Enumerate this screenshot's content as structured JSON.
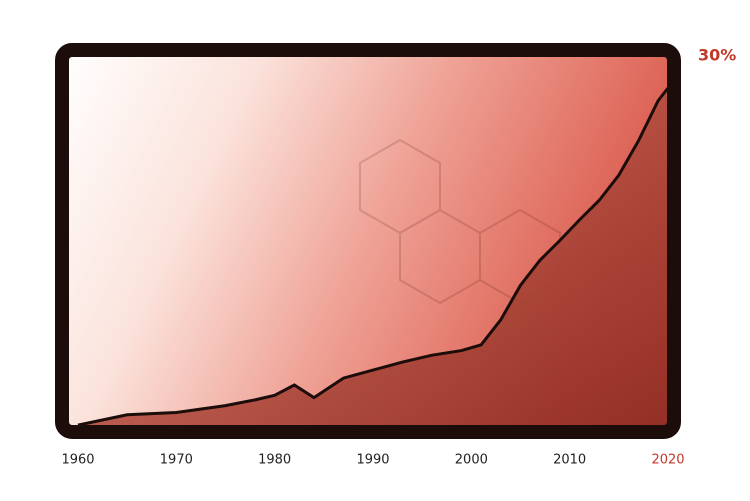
{
  "chart_data": {
    "type": "area",
    "x": [
      1960,
      1965,
      1970,
      1975,
      1978,
      1980,
      1982,
      1984,
      1987,
      1990,
      1993,
      1996,
      1999,
      2001,
      2003,
      2005,
      2007,
      2009,
      2011,
      2013,
      2015,
      2017,
      2019,
      2020
    ],
    "series": [
      {
        "color": "#8b1a10",
        "values": [
          0.6,
          1.5,
          1.7,
          2.3,
          2.8,
          3.2,
          4.1,
          3.0,
          4.7,
          5.4,
          6.1,
          6.7,
          7.1,
          7.6,
          9.8,
          12.8,
          15.0,
          16.7,
          18.5,
          20.2,
          22.4,
          25.4,
          28.9,
          30
        ],
        "value_labels": [
          null,
          null,
          null,
          null,
          null,
          null,
          null,
          null,
          null,
          null,
          null,
          null,
          null,
          null,
          null,
          null,
          null,
          null,
          null,
          null,
          null,
          null,
          null,
          "30%"
        ]
      }
    ],
    "xlim": [
      1960,
      2020
    ],
    "xticks": [
      1960,
      1970,
      1980,
      1990,
      2000,
      2010,
      2020
    ],
    "ylim": [
      0,
      30
    ],
    "label_color": "#c0392b"
  }
}
